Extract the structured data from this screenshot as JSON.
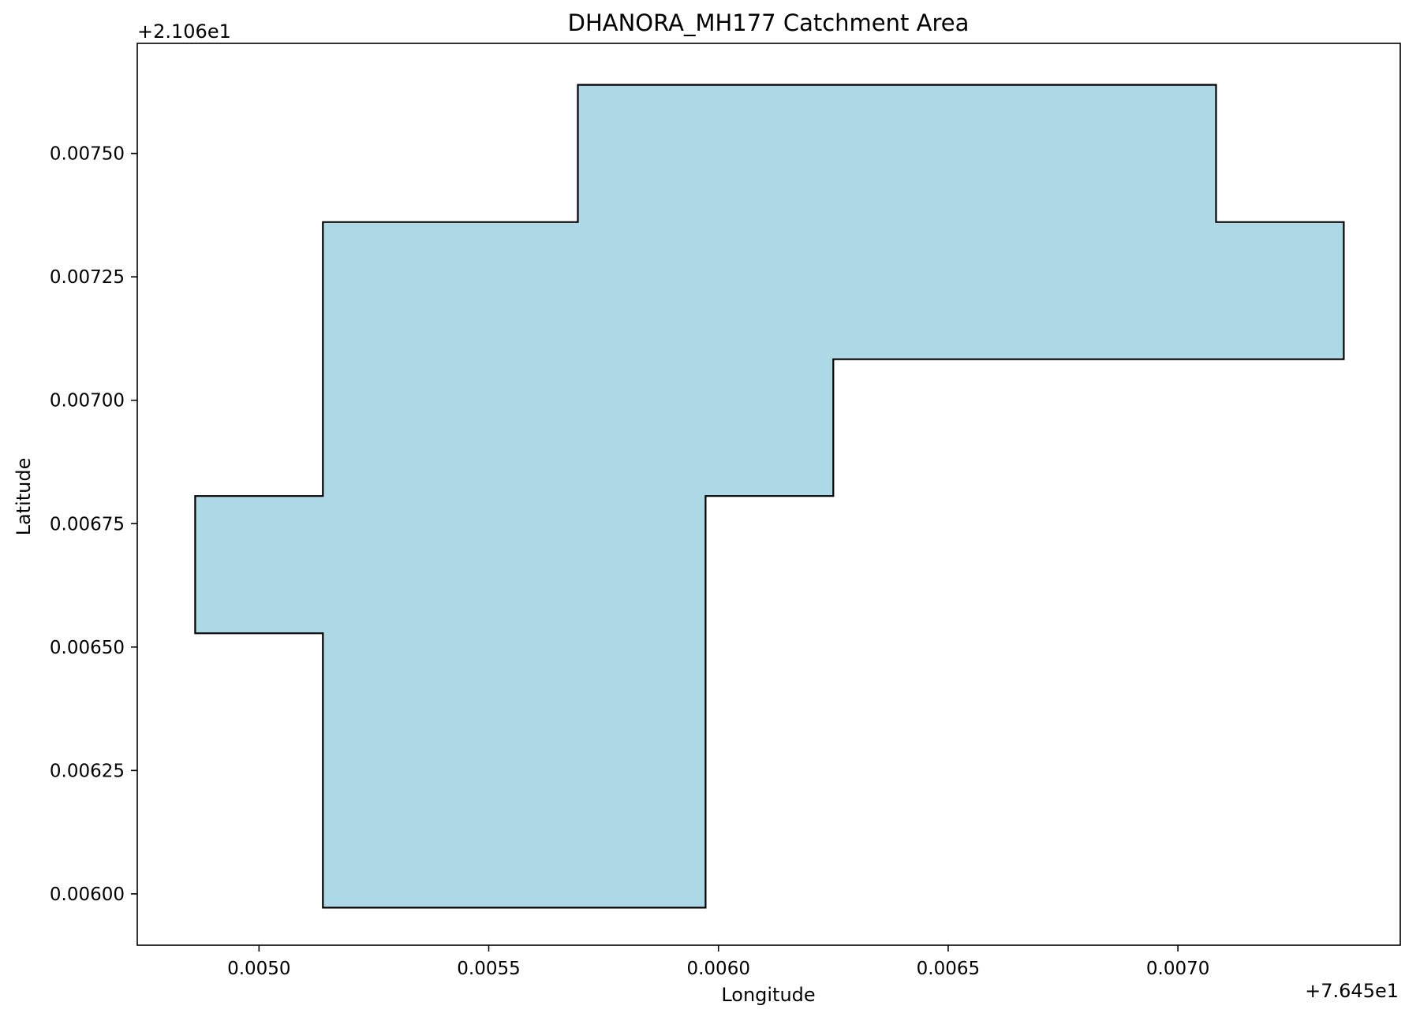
{
  "chart_data": {
    "type": "area",
    "title": "DHANORA_MH177 Catchment Area",
    "xlabel": "Longitude",
    "ylabel": "Latitude",
    "x_offset_label": "+7.645e1",
    "y_offset_label": "+2.106e1",
    "xlim": [
      0.004735,
      0.007484
    ],
    "ylim": [
      0.005896,
      0.007723
    ],
    "x_ticks": [
      0.005,
      0.0055,
      0.006,
      0.0065,
      0.007
    ],
    "x_tick_labels": [
      "0.0050",
      "0.0055",
      "0.0060",
      "0.0065",
      "0.0070"
    ],
    "y_ticks": [
      0.006,
      0.00625,
      0.0065,
      0.00675,
      0.007,
      0.00725,
      0.0075
    ],
    "y_tick_labels": [
      "0.00600",
      "0.00625",
      "0.00650",
      "0.00675",
      "0.00700",
      "0.00725",
      "0.00750"
    ],
    "grid": false,
    "polygon": {
      "fill": "#add8e6",
      "edge": "#000000",
      "vertices": [
        [
          0.004861,
          0.006806
        ],
        [
          0.005139,
          0.006806
        ],
        [
          0.005139,
          0.007361
        ],
        [
          0.005694,
          0.007361
        ],
        [
          0.005694,
          0.007639
        ],
        [
          0.007083,
          0.007639
        ],
        [
          0.007083,
          0.007361
        ],
        [
          0.007361,
          0.007361
        ],
        [
          0.007361,
          0.007083
        ],
        [
          0.00625,
          0.007083
        ],
        [
          0.00625,
          0.006806
        ],
        [
          0.005972,
          0.006806
        ],
        [
          0.005972,
          0.005972
        ],
        [
          0.005139,
          0.005972
        ],
        [
          0.005139,
          0.006528
        ],
        [
          0.004861,
          0.006528
        ]
      ]
    }
  }
}
